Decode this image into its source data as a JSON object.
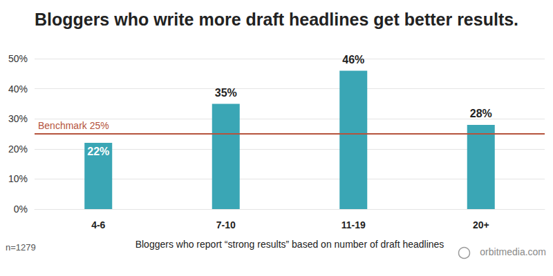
{
  "chart_data": {
    "type": "bar",
    "title": "Bloggers who write more draft headlines get better results.",
    "x_label": "Bloggers who report “strong results” based on number of draft headlines",
    "categories": [
      "4-6",
      "7-10",
      "11-19",
      "20+"
    ],
    "values": [
      22,
      35,
      46,
      28
    ],
    "value_labels": [
      "22%",
      "35%",
      "46%",
      "28%"
    ],
    "data_labels": true,
    "color": "#3aa6b5",
    "ylim": [
      0,
      50
    ],
    "yticks": [
      {
        "value": 0,
        "label": "0%"
      },
      {
        "value": 10,
        "label": "10%"
      },
      {
        "value": 20,
        "label": "20%"
      },
      {
        "value": 30,
        "label": "30%"
      },
      {
        "value": 40,
        "label": "40%"
      },
      {
        "value": 50,
        "label": "50%"
      }
    ],
    "grid": true,
    "annotations": [
      {
        "text": "Benchmark 25%",
        "y": 25,
        "color": "#b5533c"
      },
      {
        "text": "n=1279"
      },
      {
        "text": "orbitmedia.com"
      }
    ]
  }
}
